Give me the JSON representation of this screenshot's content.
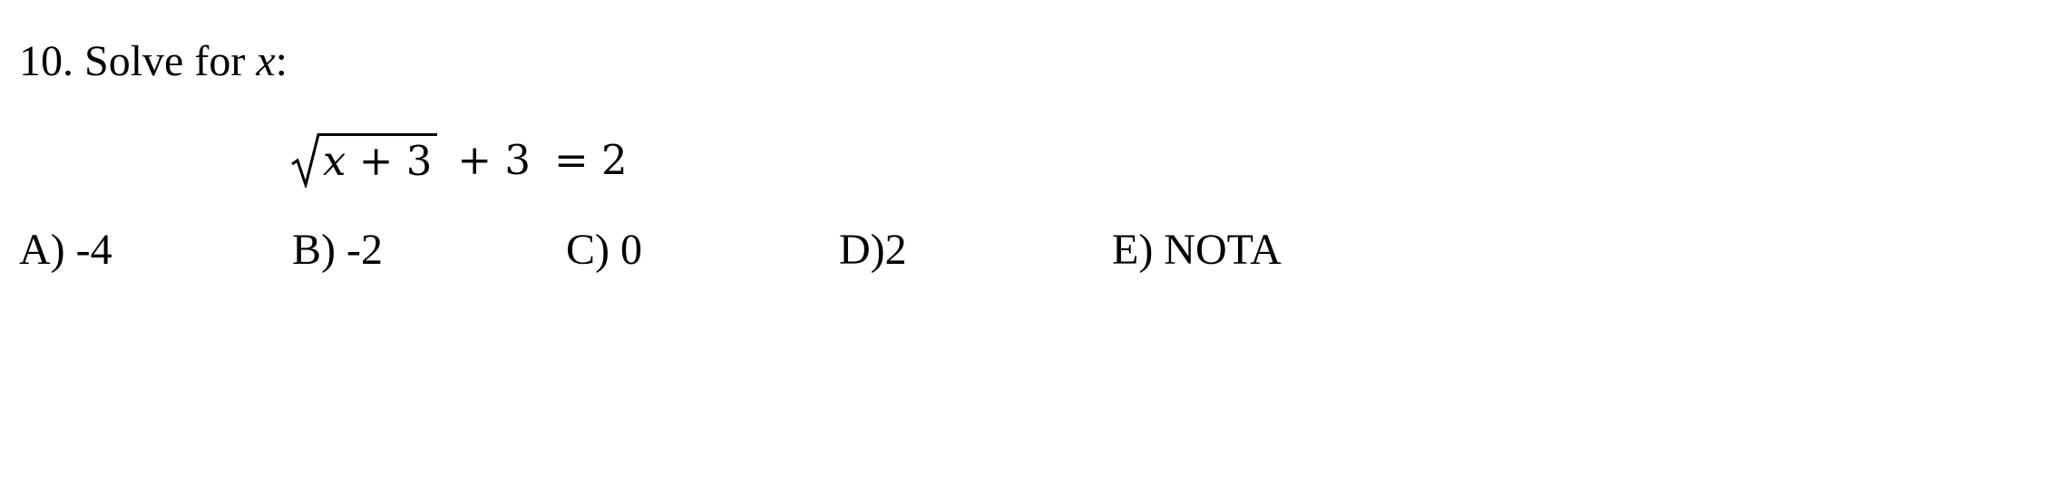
{
  "question": {
    "number": "10.",
    "prompt": "Solve for",
    "variable": "x",
    "colon": ":"
  },
  "equation": {
    "radicand_var": "x",
    "radicand_rest": " + 3",
    "middle": "+ 3",
    "rhs": "= 2"
  },
  "choices": [
    {
      "label": "A) -4"
    },
    {
      "label": "B) -2"
    },
    {
      "label": "C) 0"
    },
    {
      "label": "D)2"
    },
    {
      "label": "E) NOTA"
    }
  ]
}
